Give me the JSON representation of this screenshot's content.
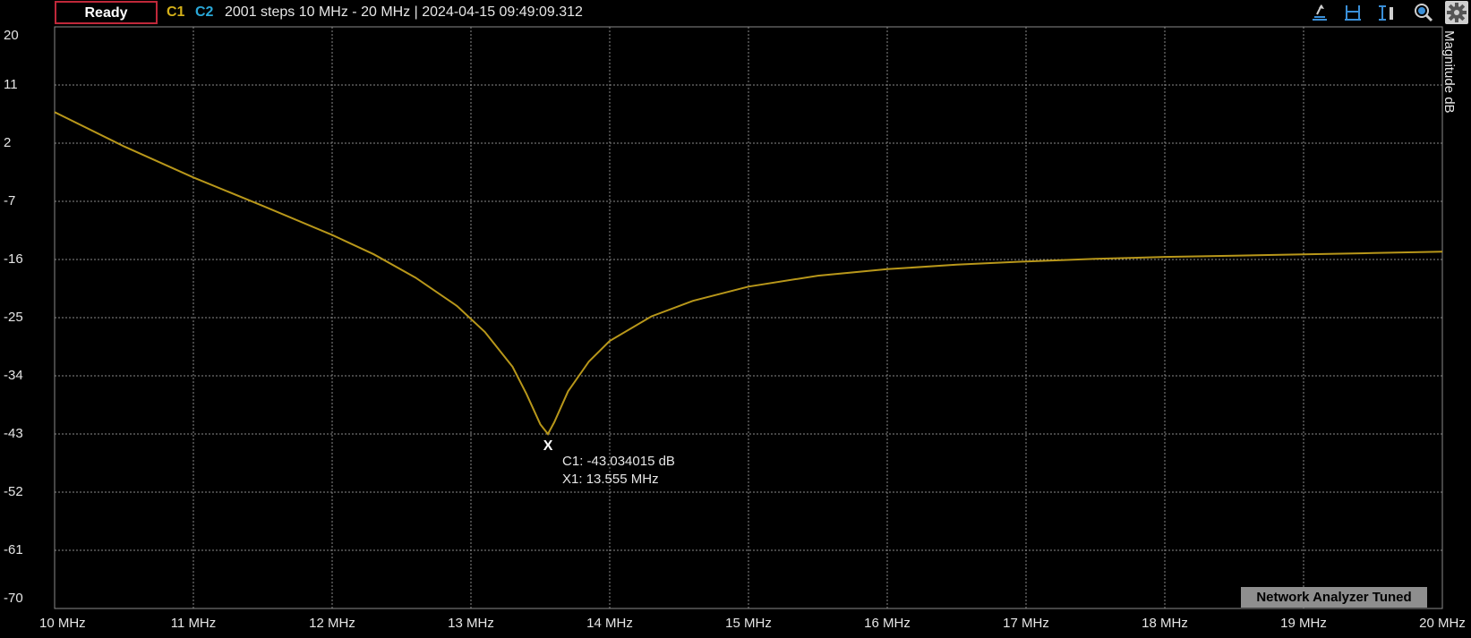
{
  "topbar": {
    "status": "Ready",
    "channel1": "C1",
    "channel2": "C2",
    "info": "2001 steps  10 MHz - 20 MHz | 2024-04-15 09:49:09.312",
    "colors": {
      "c1": "#d4b019",
      "c2": "#2aa8d8",
      "status_border": "#c0283a"
    },
    "icons": [
      "marker-peak-icon",
      "span-icon",
      "cursor-bar-icon",
      "zoom-icon",
      "gear-icon"
    ]
  },
  "axis": {
    "y_title": "Magnitude  dB"
  },
  "marker": {
    "symbol": "X",
    "c1_readout": "C1: -43.034015 dB",
    "x1_readout": "X1: 13.555 MHz"
  },
  "notice": "Network Analyzer Tuned",
  "chart_data": {
    "type": "line",
    "x_unit": "MHz",
    "xlim": [
      10,
      20
    ],
    "ylim": [
      -70,
      20
    ],
    "y_ticks": [
      20,
      11,
      2,
      -7,
      -16,
      -25,
      -34,
      -43,
      -52,
      -61,
      -70
    ],
    "x_ticks": [
      10,
      11,
      12,
      13,
      14,
      15,
      16,
      17,
      18,
      19,
      20
    ],
    "x_tick_labels": [
      "10 MHz",
      "11 MHz",
      "12 MHz",
      "13 MHz",
      "14 MHz",
      "15 MHz",
      "16 MHz",
      "17 MHz",
      "18 MHz",
      "19 MHz",
      "20 MHz"
    ],
    "grid": true,
    "series": [
      {
        "color": "#b8971a",
        "x": [
          10,
          10.5,
          11,
          11.5,
          12,
          12.3,
          12.6,
          12.9,
          13.1,
          13.3,
          13.4,
          13.5,
          13.555,
          13.6,
          13.7,
          13.85,
          14,
          14.3,
          14.6,
          15,
          15.5,
          16,
          16.5,
          17,
          17.5,
          18,
          18.5,
          19,
          19.5,
          20
        ],
        "y": [
          6.8,
          1.5,
          -3.3,
          -7.7,
          -12.2,
          -15.2,
          -18.8,
          -23.2,
          -27.2,
          -32.6,
          -36.8,
          -41.5,
          -43.0,
          -41.2,
          -36.4,
          -31.8,
          -28.6,
          -24.8,
          -22.4,
          -20.2,
          -18.5,
          -17.5,
          -16.8,
          -16.3,
          -15.9,
          -15.6,
          -15.4,
          -15.2,
          -15.0,
          -14.8
        ]
      }
    ]
  }
}
